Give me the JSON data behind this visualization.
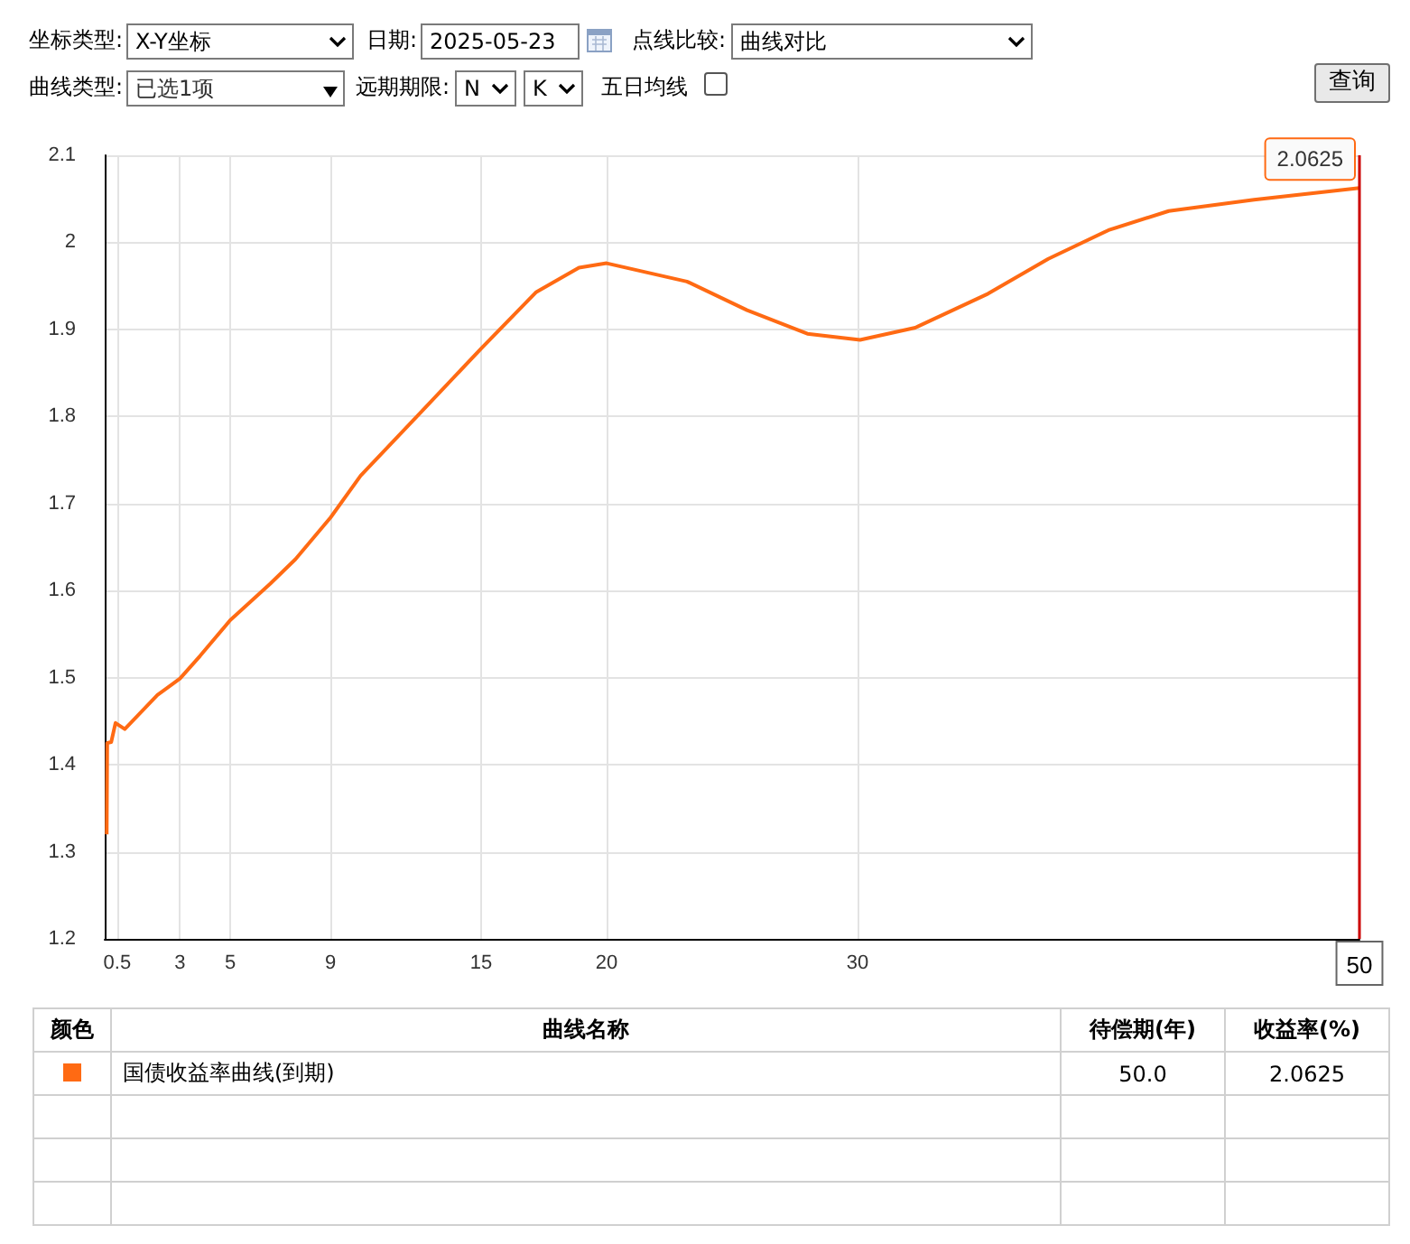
{
  "chart_data": {
    "type": "line",
    "xlim": [
      0,
      50
    ],
    "xticks": [
      0.5,
      3,
      5,
      9,
      15,
      20,
      30
    ],
    "ylim": [
      1.2,
      2.1
    ],
    "yticks": [
      1.2,
      1.3,
      1.4,
      1.5,
      1.6,
      1.7,
      1.8,
      1.9,
      2,
      2.1
    ],
    "grid": true,
    "marker": "none",
    "series": [
      {
        "name": "国债收益率曲线(到期)",
        "color": "#ff6a13",
        "x": [
          0.08,
          0.1,
          0.26,
          0.43,
          0.8,
          2.1,
          3,
          3.8,
          5,
          6.6,
          7.6,
          9,
          10.2,
          12.6,
          15,
          17.2,
          18.9,
          20,
          23.2,
          25.6,
          28,
          30.1,
          32.3,
          35.2,
          37.6,
          40,
          42.4,
          45.8,
          50
        ],
        "values": [
          1.32,
          1.425,
          1.426,
          1.448,
          1.441,
          1.48,
          1.499,
          1.525,
          1.566,
          1.608,
          1.636,
          1.684,
          1.732,
          1.805,
          1.878,
          1.943,
          1.971,
          1.976,
          1.955,
          1.922,
          1.895,
          1.888,
          1.902,
          1.941,
          1.981,
          2.014,
          2.036,
          2.049,
          2.0625
        ]
      }
    ],
    "ref_lines": [
      {
        "axis": "x",
        "value": 50,
        "label": "50",
        "color": "#cc0000"
      }
    ],
    "annotations": [
      "坐标类型:",
      "X-Y坐标",
      "日期:",
      "2025-05-23",
      "点线比较:",
      "曲线对比",
      "曲线类型:",
      "已选1项",
      "远期期限:",
      "N",
      "K",
      "五日均线",
      "查询",
      "颜色",
      "曲线名称",
      "待偿期(年)",
      "收益率(%)",
      "50.0",
      "2.0625",
      {
        "text": "2.0625",
        "x": 50,
        "y": 2.0625
      }
    ]
  }
}
